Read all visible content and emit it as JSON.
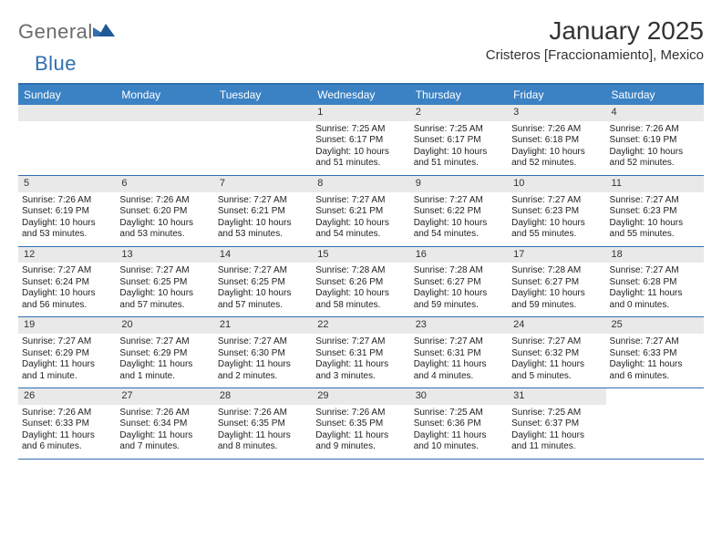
{
  "brand": {
    "part1": "General",
    "part2": "Blue"
  },
  "title": "January 2025",
  "location": "Cristeros [Fraccionamiento], Mexico",
  "colors": {
    "header_bg": "#3b82c4",
    "header_border": "#2f6fb0",
    "daynum_bg": "#e9e9e9",
    "text": "#222222",
    "brand_gray": "#6b6b6b",
    "brand_blue": "#2f6fb0"
  },
  "days_of_week": [
    "Sunday",
    "Monday",
    "Tuesday",
    "Wednesday",
    "Thursday",
    "Friday",
    "Saturday"
  ],
  "weeks": [
    [
      null,
      null,
      null,
      {
        "n": "1",
        "sr": "Sunrise: 7:25 AM",
        "ss": "Sunset: 6:17 PM",
        "d1": "Daylight: 10 hours",
        "d2": "and 51 minutes."
      },
      {
        "n": "2",
        "sr": "Sunrise: 7:25 AM",
        "ss": "Sunset: 6:17 PM",
        "d1": "Daylight: 10 hours",
        "d2": "and 51 minutes."
      },
      {
        "n": "3",
        "sr": "Sunrise: 7:26 AM",
        "ss": "Sunset: 6:18 PM",
        "d1": "Daylight: 10 hours",
        "d2": "and 52 minutes."
      },
      {
        "n": "4",
        "sr": "Sunrise: 7:26 AM",
        "ss": "Sunset: 6:19 PM",
        "d1": "Daylight: 10 hours",
        "d2": "and 52 minutes."
      }
    ],
    [
      {
        "n": "5",
        "sr": "Sunrise: 7:26 AM",
        "ss": "Sunset: 6:19 PM",
        "d1": "Daylight: 10 hours",
        "d2": "and 53 minutes."
      },
      {
        "n": "6",
        "sr": "Sunrise: 7:26 AM",
        "ss": "Sunset: 6:20 PM",
        "d1": "Daylight: 10 hours",
        "d2": "and 53 minutes."
      },
      {
        "n": "7",
        "sr": "Sunrise: 7:27 AM",
        "ss": "Sunset: 6:21 PM",
        "d1": "Daylight: 10 hours",
        "d2": "and 53 minutes."
      },
      {
        "n": "8",
        "sr": "Sunrise: 7:27 AM",
        "ss": "Sunset: 6:21 PM",
        "d1": "Daylight: 10 hours",
        "d2": "and 54 minutes."
      },
      {
        "n": "9",
        "sr": "Sunrise: 7:27 AM",
        "ss": "Sunset: 6:22 PM",
        "d1": "Daylight: 10 hours",
        "d2": "and 54 minutes."
      },
      {
        "n": "10",
        "sr": "Sunrise: 7:27 AM",
        "ss": "Sunset: 6:23 PM",
        "d1": "Daylight: 10 hours",
        "d2": "and 55 minutes."
      },
      {
        "n": "11",
        "sr": "Sunrise: 7:27 AM",
        "ss": "Sunset: 6:23 PM",
        "d1": "Daylight: 10 hours",
        "d2": "and 55 minutes."
      }
    ],
    [
      {
        "n": "12",
        "sr": "Sunrise: 7:27 AM",
        "ss": "Sunset: 6:24 PM",
        "d1": "Daylight: 10 hours",
        "d2": "and 56 minutes."
      },
      {
        "n": "13",
        "sr": "Sunrise: 7:27 AM",
        "ss": "Sunset: 6:25 PM",
        "d1": "Daylight: 10 hours",
        "d2": "and 57 minutes."
      },
      {
        "n": "14",
        "sr": "Sunrise: 7:27 AM",
        "ss": "Sunset: 6:25 PM",
        "d1": "Daylight: 10 hours",
        "d2": "and 57 minutes."
      },
      {
        "n": "15",
        "sr": "Sunrise: 7:28 AM",
        "ss": "Sunset: 6:26 PM",
        "d1": "Daylight: 10 hours",
        "d2": "and 58 minutes."
      },
      {
        "n": "16",
        "sr": "Sunrise: 7:28 AM",
        "ss": "Sunset: 6:27 PM",
        "d1": "Daylight: 10 hours",
        "d2": "and 59 minutes."
      },
      {
        "n": "17",
        "sr": "Sunrise: 7:28 AM",
        "ss": "Sunset: 6:27 PM",
        "d1": "Daylight: 10 hours",
        "d2": "and 59 minutes."
      },
      {
        "n": "18",
        "sr": "Sunrise: 7:27 AM",
        "ss": "Sunset: 6:28 PM",
        "d1": "Daylight: 11 hours",
        "d2": "and 0 minutes."
      }
    ],
    [
      {
        "n": "19",
        "sr": "Sunrise: 7:27 AM",
        "ss": "Sunset: 6:29 PM",
        "d1": "Daylight: 11 hours",
        "d2": "and 1 minute."
      },
      {
        "n": "20",
        "sr": "Sunrise: 7:27 AM",
        "ss": "Sunset: 6:29 PM",
        "d1": "Daylight: 11 hours",
        "d2": "and 1 minute."
      },
      {
        "n": "21",
        "sr": "Sunrise: 7:27 AM",
        "ss": "Sunset: 6:30 PM",
        "d1": "Daylight: 11 hours",
        "d2": "and 2 minutes."
      },
      {
        "n": "22",
        "sr": "Sunrise: 7:27 AM",
        "ss": "Sunset: 6:31 PM",
        "d1": "Daylight: 11 hours",
        "d2": "and 3 minutes."
      },
      {
        "n": "23",
        "sr": "Sunrise: 7:27 AM",
        "ss": "Sunset: 6:31 PM",
        "d1": "Daylight: 11 hours",
        "d2": "and 4 minutes."
      },
      {
        "n": "24",
        "sr": "Sunrise: 7:27 AM",
        "ss": "Sunset: 6:32 PM",
        "d1": "Daylight: 11 hours",
        "d2": "and 5 minutes."
      },
      {
        "n": "25",
        "sr": "Sunrise: 7:27 AM",
        "ss": "Sunset: 6:33 PM",
        "d1": "Daylight: 11 hours",
        "d2": "and 6 minutes."
      }
    ],
    [
      {
        "n": "26",
        "sr": "Sunrise: 7:26 AM",
        "ss": "Sunset: 6:33 PM",
        "d1": "Daylight: 11 hours",
        "d2": "and 6 minutes."
      },
      {
        "n": "27",
        "sr": "Sunrise: 7:26 AM",
        "ss": "Sunset: 6:34 PM",
        "d1": "Daylight: 11 hours",
        "d2": "and 7 minutes."
      },
      {
        "n": "28",
        "sr": "Sunrise: 7:26 AM",
        "ss": "Sunset: 6:35 PM",
        "d1": "Daylight: 11 hours",
        "d2": "and 8 minutes."
      },
      {
        "n": "29",
        "sr": "Sunrise: 7:26 AM",
        "ss": "Sunset: 6:35 PM",
        "d1": "Daylight: 11 hours",
        "d2": "and 9 minutes."
      },
      {
        "n": "30",
        "sr": "Sunrise: 7:25 AM",
        "ss": "Sunset: 6:36 PM",
        "d1": "Daylight: 11 hours",
        "d2": "and 10 minutes."
      },
      {
        "n": "31",
        "sr": "Sunrise: 7:25 AM",
        "ss": "Sunset: 6:37 PM",
        "d1": "Daylight: 11 hours",
        "d2": "and 11 minutes."
      },
      null
    ]
  ]
}
